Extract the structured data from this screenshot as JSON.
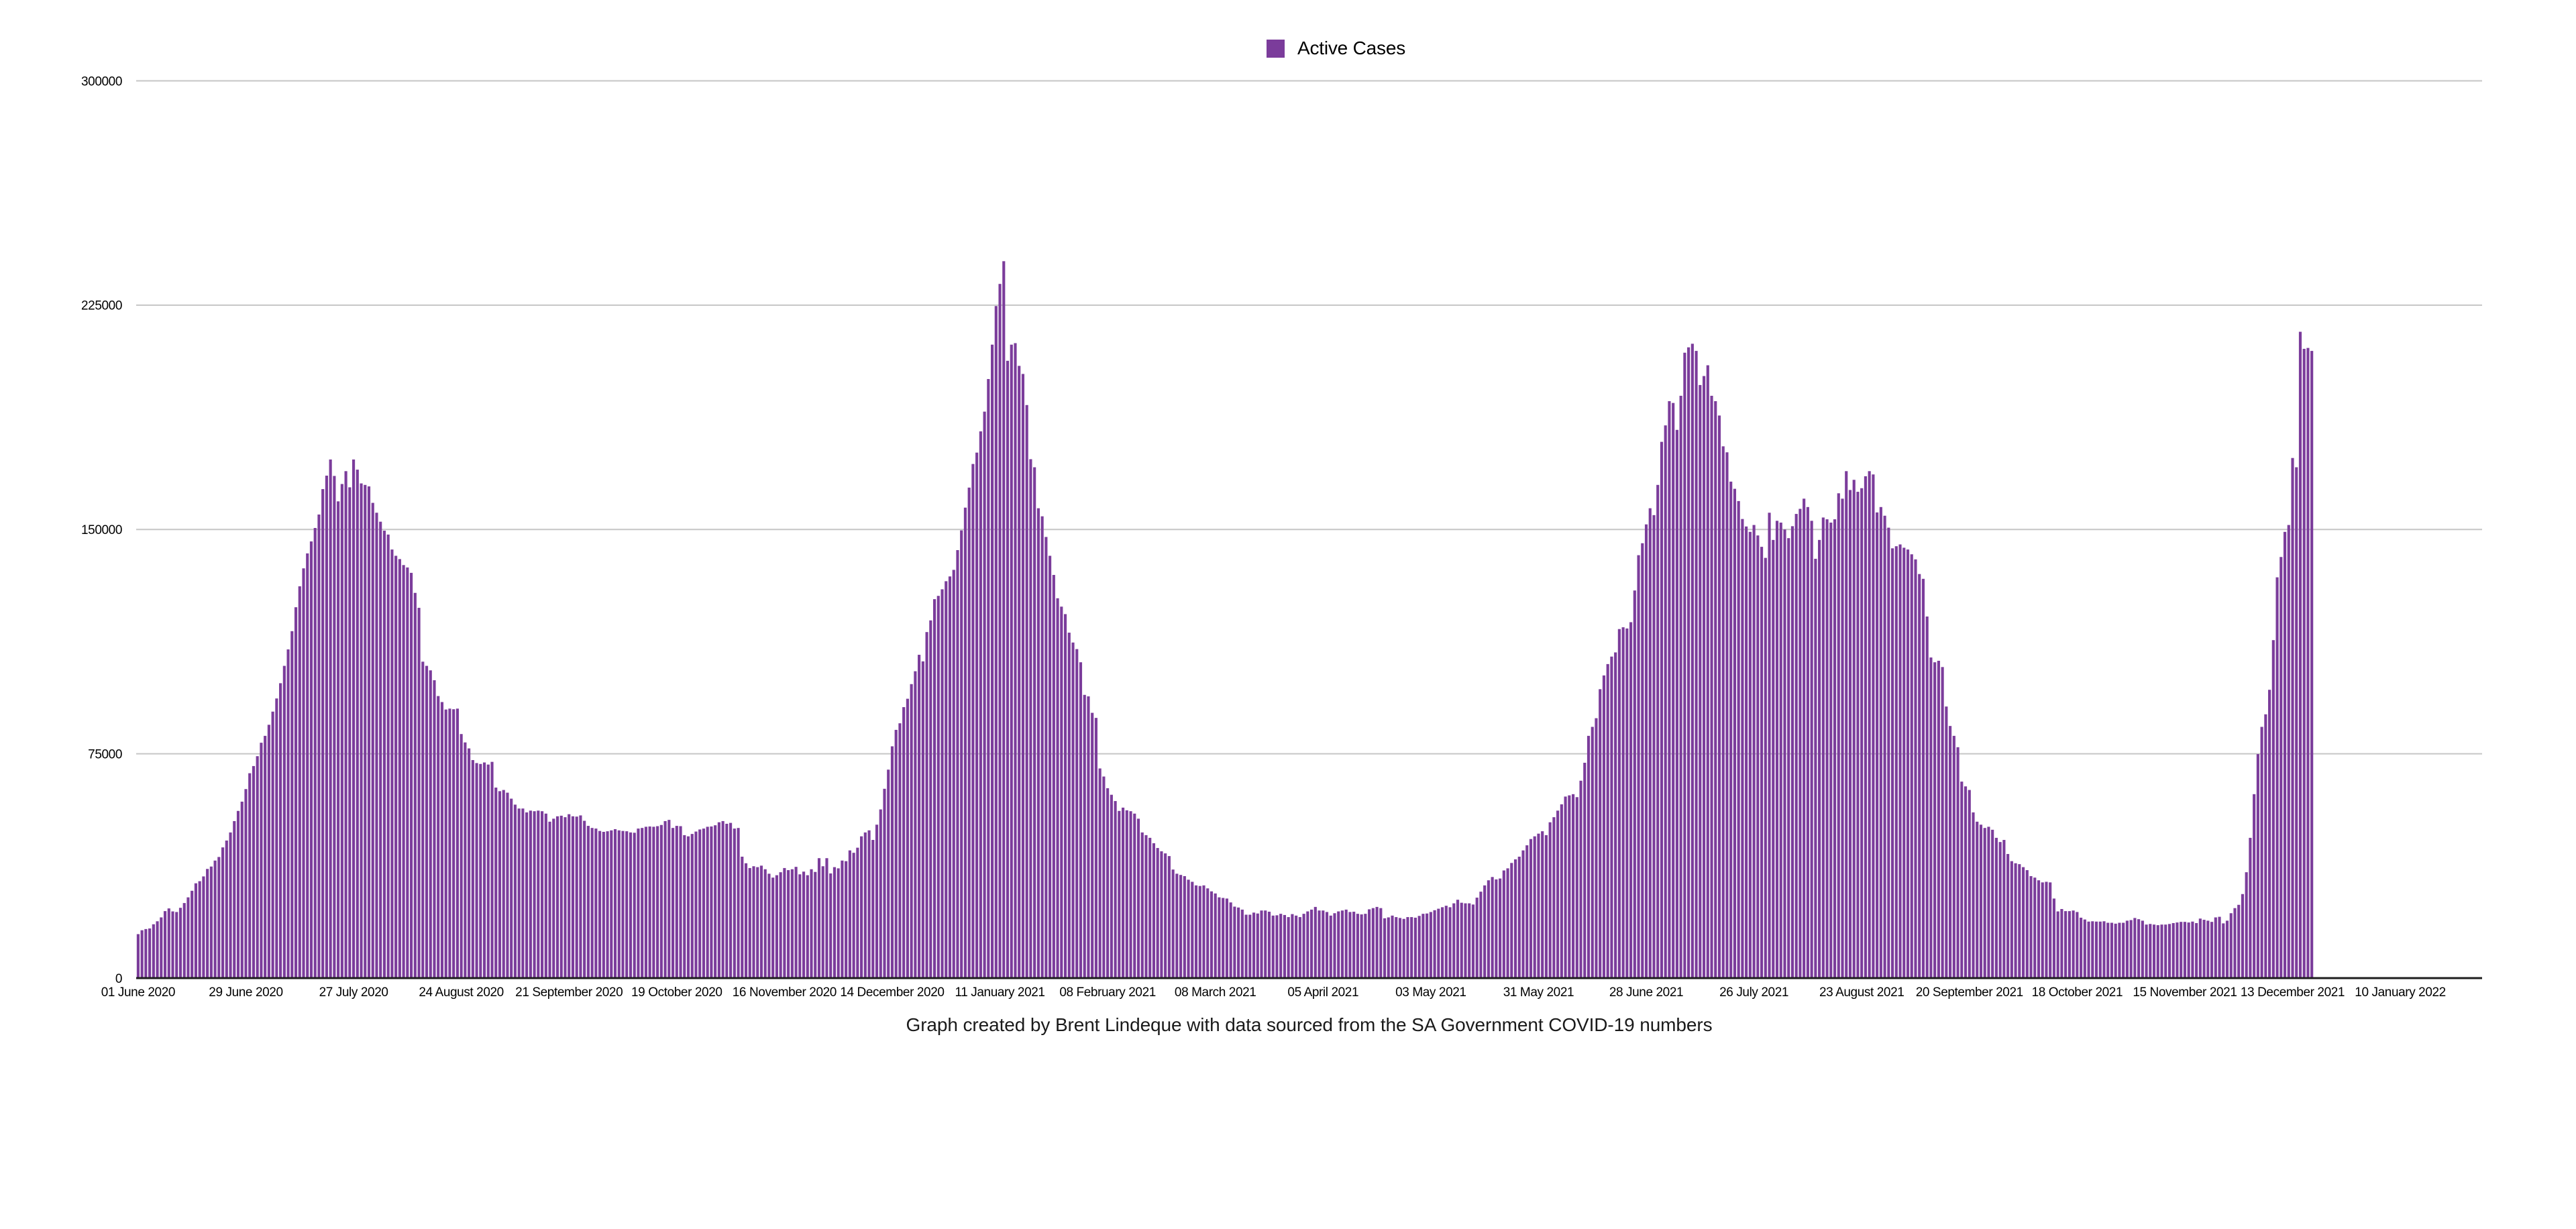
{
  "chart_data": {
    "type": "bar",
    "title": "",
    "legend": [
      "Active Cases"
    ],
    "caption": "Graph created by Brent Lindeque with data sourced from the SA Government COVID-19 numbers",
    "xlabel": "",
    "ylabel": "",
    "ylim": [
      0,
      300000
    ],
    "yticks": [
      0,
      75000,
      150000,
      225000,
      300000
    ],
    "x_tick_labels": [
      "01 June 2020",
      "29 June 2020",
      "27 July 2020",
      "24 August 2020",
      "21 September 2020",
      "19 October 2020",
      "16 November 2020",
      "14 December 2020",
      "11 January 2021",
      "08 February 2021",
      "08 March 2021",
      "05 April 2021",
      "03 May 2021",
      "31 May 2021",
      "28 June 2021",
      "26 July 2021",
      "23 August 2021",
      "20 September 2021",
      "18 October 2021",
      "15 November 2021",
      "13 December 2021",
      "10 January 2022"
    ],
    "x_tick_interval_days": 28,
    "start_date": "01 June 2020",
    "last_bar_date": "18 December 2021",
    "num_bars": 566,
    "grid": "horizontal",
    "legend_position": "top-center",
    "colors": {
      "bar": "#7b3c9b",
      "grid": "#c6c6c6",
      "axis": "#1d1d1d",
      "text": "#000000"
    },
    "series": [
      {
        "name": "Active Cases",
        "values": [
          14700,
          16000,
          16400,
          16600,
          18000,
          19000,
          20300,
          22400,
          23300,
          22300,
          22100,
          23500,
          25100,
          27000,
          29200,
          31700,
          32400,
          34000,
          36500,
          37300,
          39300,
          40500,
          43700,
          46000,
          48700,
          52500,
          55900,
          59000,
          63200,
          68500,
          70900,
          74200,
          78700,
          81000,
          84700,
          89100,
          93500,
          98600,
          104400,
          109900,
          116000,
          124000,
          131000,
          137000,
          142000,
          146000,
          150500,
          155000,
          163500,
          168000,
          173400,
          167900,
          159400,
          165200,
          169500,
          164100,
          173400,
          170000,
          165400,
          164900,
          164400,
          158900,
          155600,
          152600,
          149600,
          148300,
          143300,
          141200,
          140100,
          138100,
          137300,
          135500,
          128800,
          123800,
          105800,
          104400,
          102900,
          99600,
          94300,
          92300,
          89800,
          90100,
          89900,
          90100,
          81600,
          78800,
          76800,
          72900,
          71900,
          71600,
          72100,
          71400,
          72300,
          63700,
          62500,
          62900,
          62000,
          60000,
          58000,
          56700,
          56700,
          55400,
          56000,
          55800,
          56000,
          55800,
          55000,
          52300,
          53300,
          54100,
          54300,
          53800,
          54800,
          54100,
          54000,
          54400,
          52600,
          50900,
          50200,
          50000,
          49200,
          48900,
          49100,
          49400,
          49800,
          49400,
          49200,
          49100,
          48700,
          48600,
          50000,
          50200,
          50600,
          50700,
          50600,
          50800,
          51200,
          52500,
          52900,
          50200,
          50900,
          50800,
          47800,
          47400,
          48200,
          49000,
          49700,
          50000,
          50600,
          50700,
          51100,
          52100,
          52500,
          51600,
          51900,
          50000,
          50200,
          40600,
          38400,
          36800,
          37400,
          37100,
          37600,
          36400,
          34900,
          33600,
          34400,
          35400,
          36800,
          36100,
          36400,
          37200,
          34700,
          35600,
          34400,
          36400,
          35500,
          40100,
          37400,
          40100,
          35000,
          37100,
          36700,
          39300,
          39100,
          42700,
          41900,
          43600,
          47400,
          48700,
          49400,
          46200,
          51300,
          56400,
          63300,
          69700,
          77500,
          83000,
          85200,
          90600,
          93400,
          98300,
          102600,
          108100,
          105900,
          115700,
          119600,
          126700,
          127800,
          130000,
          132700,
          134300,
          136500,
          143100,
          149700,
          157300,
          164000,
          171900,
          175700,
          182800,
          189400,
          200300,
          211800,
          224700,
          232100,
          239700,
          206400,
          211800,
          212300,
          204700,
          202000,
          191600,
          173500,
          170800,
          157100,
          154400,
          147500,
          141200,
          134800,
          127000,
          124200,
          121700,
          115500,
          112200,
          110000,
          105600,
          94700,
          94200,
          88700,
          87000,
          70100,
          67400,
          63500,
          61300,
          59200,
          55900,
          57000,
          56100,
          55800,
          55000,
          53300,
          48700,
          47800,
          46900,
          45100,
          43500,
          42400,
          41700,
          40800,
          36300,
          34900,
          34500,
          34100,
          32900,
          32200,
          31000,
          30800,
          31000,
          30000,
          29000,
          28300,
          27000,
          26800,
          26600,
          25300,
          23900,
          23600,
          22900,
          21200,
          21200,
          21900,
          21600,
          22600,
          22600,
          22200,
          20900,
          21000,
          21500,
          21100,
          20400,
          21400,
          20900,
          20400,
          21500,
          22300,
          22900,
          23800,
          22600,
          22600,
          22100,
          20900,
          21700,
          22300,
          22600,
          22900,
          22100,
          22200,
          21500,
          21300,
          21500,
          23000,
          23400,
          23800,
          23400,
          20000,
          20300,
          20900,
          20400,
          20100,
          19800,
          20400,
          20400,
          20200,
          20800,
          21500,
          21600,
          22100,
          22700,
          23200,
          23700,
          24200,
          23700,
          25000,
          26200,
          25200,
          25000,
          25000,
          24600,
          26900,
          28900,
          31000,
          32700,
          33800,
          33000,
          33300,
          36000,
          36700,
          38500,
          39700,
          40600,
          42700,
          44400,
          46500,
          47400,
          48300,
          49100,
          47800,
          52100,
          53800,
          56000,
          58100,
          60700,
          61100,
          61500,
          60500,
          66000,
          72000,
          81000,
          84000,
          86900,
          96600,
          101200,
          105000,
          107500,
          108900,
          116700,
          117300,
          116900,
          119000,
          129600,
          141400,
          145400,
          151700,
          157100,
          154800,
          164900,
          179300,
          184800,
          192900,
          192300,
          183300,
          194700,
          209100,
          210900,
          212100,
          209700,
          198300,
          201300,
          204900,
          194700,
          192900,
          188100,
          177800,
          175800,
          166000,
          163600,
          159500,
          153500,
          151000,
          149200,
          151500,
          148000,
          144200,
          140500,
          155600,
          146500,
          152900,
          152300,
          150000,
          147100,
          151100,
          155200,
          156900,
          160300,
          157500,
          152900,
          140200,
          146500,
          154000,
          153400,
          152300,
          153400,
          162100,
          160300,
          169500,
          163200,
          166600,
          162600,
          163800,
          167800,
          169500,
          168400,
          155700,
          157500,
          154600,
          150600,
          143700,
          144400,
          145000,
          143900,
          143300,
          141700,
          140000,
          135100,
          133500,
          120900,
          107200,
          105600,
          106100,
          104000,
          90800,
          84300,
          81000,
          77200,
          65700,
          64100,
          62900,
          55400,
          52300,
          51300,
          50200,
          50600,
          49600,
          46900,
          45500,
          46200,
          41500,
          39100,
          38400,
          38100,
          37100,
          36100,
          34100,
          33600,
          32700,
          32000,
          32200,
          32000,
          26600,
          22300,
          23100,
          22400,
          22400,
          22600,
          22100,
          20200,
          19600,
          18900,
          19000,
          18900,
          18900,
          19000,
          18500,
          18500,
          18200,
          18500,
          18500,
          19200,
          19400,
          20100,
          19700,
          19200,
          17900,
          18100,
          17900,
          17700,
          17900,
          17900,
          18100,
          18400,
          18600,
          18800,
          18800,
          18600,
          18900,
          18400,
          19900,
          19500,
          19200,
          18800,
          20300,
          20500,
          18300,
          19200,
          21700,
          23400,
          24500,
          28100,
          35400,
          46900,
          61500,
          74900,
          84000,
          88200,
          96400,
          113000,
          134000,
          140800,
          149200,
          151500,
          173900,
          170800,
          216100,
          210400,
          210700,
          209700
        ]
      }
    ]
  }
}
